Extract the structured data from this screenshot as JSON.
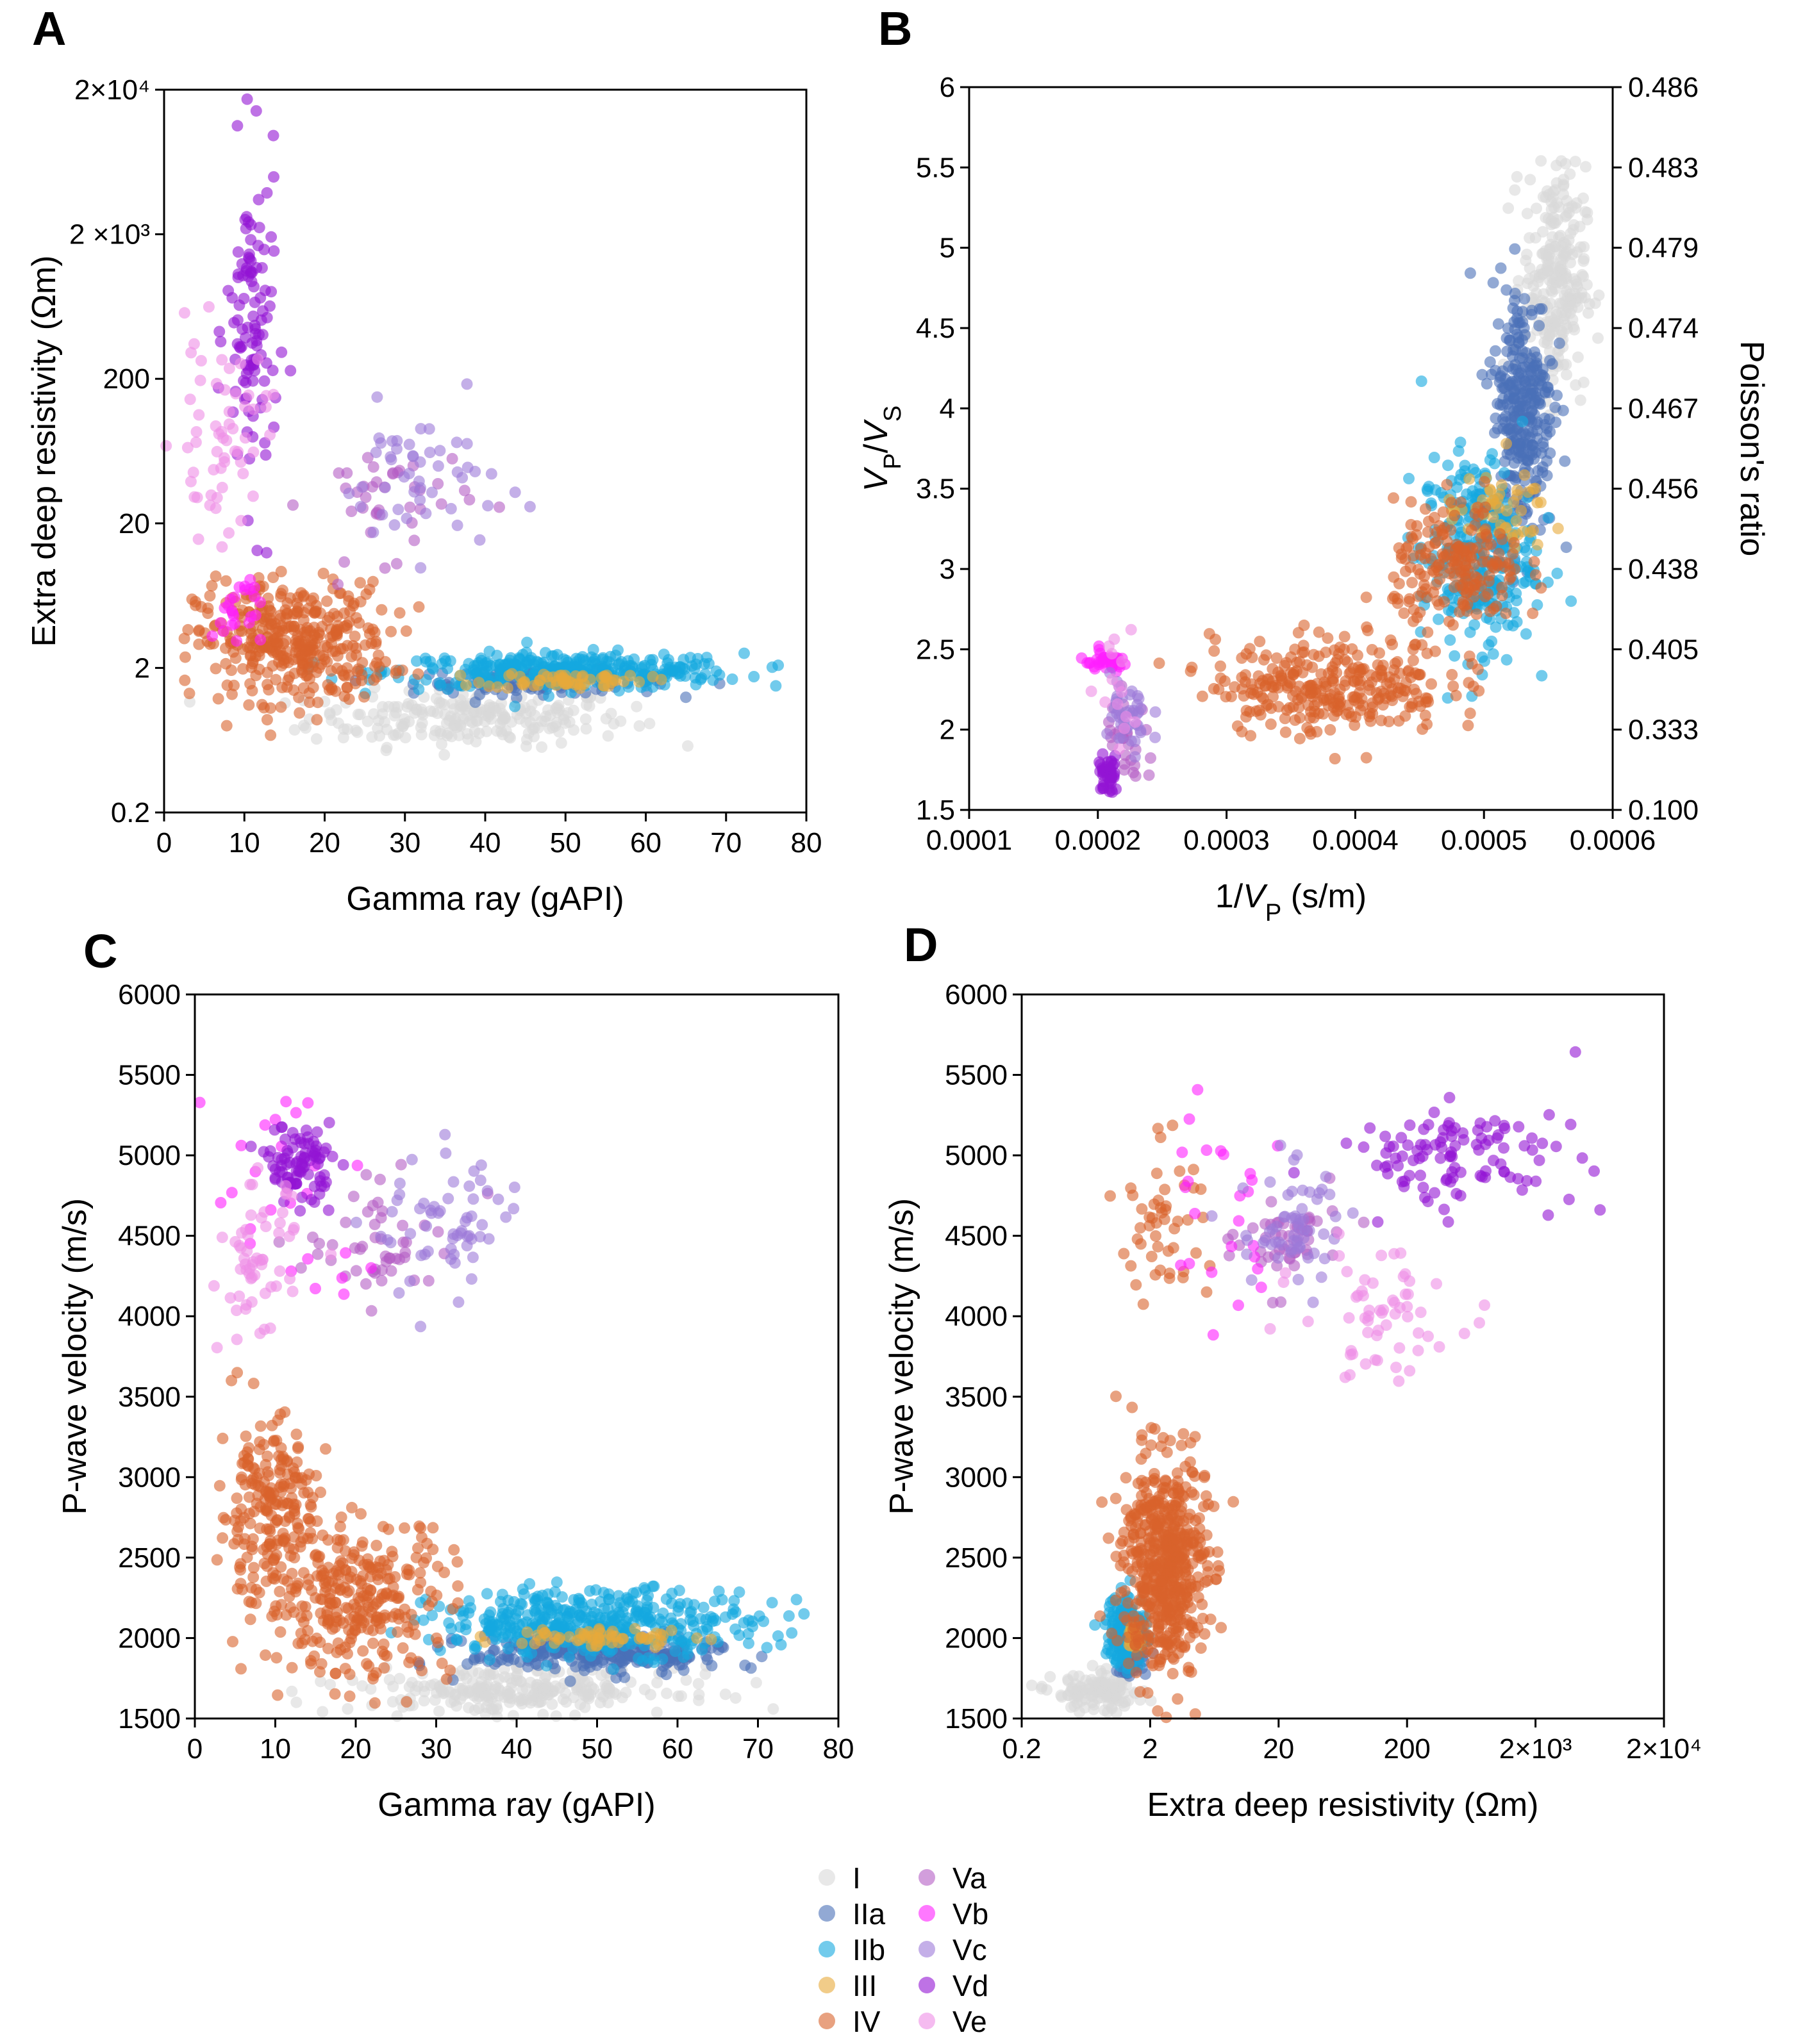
{
  "chart_data": [
    {
      "panel": "A",
      "type": "scatter",
      "xlabel": "Gamma ray (gAPI)",
      "ylabel": "Extra deep resistivity (Ωm)",
      "xlim": [
        0,
        80
      ],
      "ylim": [
        0.2,
        20000
      ],
      "yscale": "log",
      "xticks": [
        0,
        10,
        20,
        30,
        40,
        50,
        60,
        70,
        80
      ],
      "xticklabels": [
        "0",
        "10",
        "20",
        "30",
        "40",
        "50",
        "60",
        "70",
        "80"
      ],
      "yticks": [
        0.2,
        2,
        20,
        200,
        2000,
        20000
      ],
      "yticklabels": [
        "0.2",
        "2",
        "20",
        "200",
        "2 ×10³",
        "2×10⁴"
      ],
      "grid": false,
      "series": [
        {
          "name": "I",
          "clouds": [
            {
              "x": [
                38,
                10
              ],
              "y": [
                0.9,
                1.25
              ],
              "n": 220
            }
          ]
        },
        {
          "name": "IIa",
          "clouds": [
            {
              "x": [
                47,
                8
              ],
              "y": [
                1.6,
                1.1
              ],
              "n": 120
            }
          ]
        },
        {
          "name": "IIb",
          "clouds": [
            {
              "x": [
                50,
                11
              ],
              "y": [
                1.9,
                1.15
              ],
              "n": 350
            }
          ]
        },
        {
          "name": "III",
          "clouds": [
            {
              "x": [
                50,
                5
              ],
              "y": [
                1.65,
                1.07
              ],
              "n": 60
            }
          ]
        },
        {
          "name": "IV",
          "clouds": [
            {
              "x": [
                16,
                6
              ],
              "y": [
                3,
                1.6
              ],
              "n": 380
            }
          ]
        },
        {
          "name": "Va",
          "clouds": [
            {
              "x": [
                28,
                5
              ],
              "y": [
                30,
                1.6
              ],
              "n": 40
            }
          ]
        },
        {
          "name": "Vb",
          "clouds": [
            {
              "x": [
                9,
                1.5
              ],
              "y": [
                5,
                1.4
              ],
              "n": 25
            }
          ]
        },
        {
          "name": "Vc",
          "clouds": [
            {
              "x": [
                32,
                5
              ],
              "y": [
                40,
                1.8
              ],
              "n": 50
            }
          ]
        },
        {
          "name": "Vd",
          "clouds": [
            {
              "x": [
                11,
                1.6
              ],
              "y": [
                400,
                4
              ],
              "n": 110
            }
          ]
        },
        {
          "name": "Ve",
          "clouds": [
            {
              "x": [
                7,
                3
              ],
              "y": [
                80,
                2.2
              ],
              "n": 60
            }
          ]
        }
      ]
    },
    {
      "panel": "B",
      "type": "scatter",
      "xlabel_parts": [
        "1/",
        "V",
        "P",
        " (s/m)"
      ],
      "ylabel_parts": [
        "V",
        "P",
        "/",
        "V",
        "S"
      ],
      "y2label": "Poisson's ratio",
      "xlim": [
        0.0001,
        0.0006
      ],
      "ylim": [
        1.5,
        6
      ],
      "xticks": [
        0.0001,
        0.0002,
        0.0003,
        0.0004,
        0.0005,
        0.0006
      ],
      "xticklabels": [
        "0.0001",
        "0.0002",
        "0.0003",
        "0.0004",
        "0.0005",
        "0.0006"
      ],
      "yticks": [
        1.5,
        2,
        2.5,
        3,
        3.5,
        4,
        4.5,
        5,
        5.5,
        6
      ],
      "yticklabels": [
        "1.5",
        "2",
        "2.5",
        "3",
        "3.5",
        "4",
        "4.5",
        "5",
        "5.5",
        "6"
      ],
      "y2ticklabels": [
        "0.100",
        "0.333",
        "0.405",
        "0.438",
        "0.456",
        "0.467",
        "0.474",
        "0.479",
        "0.483",
        "0.486"
      ],
      "grid": false,
      "series": [
        {
          "name": "I",
          "clouds": [
            {
              "x": [
                0.000555,
                1.2e-05
              ],
              "y": [
                4.8,
                0.35
              ],
              "n": 260
            }
          ]
        },
        {
          "name": "IIa",
          "clouds": [
            {
              "x": [
                0.00053,
                1.2e-05
              ],
              "y": [
                4.0,
                0.4
              ],
              "n": 300
            }
          ]
        },
        {
          "name": "IIb",
          "clouds": [
            {
              "x": [
                0.000495,
                2.2e-05
              ],
              "y": [
                3.1,
                0.3
              ],
              "n": 300
            }
          ]
        },
        {
          "name": "III",
          "clouds": [
            {
              "x": [
                0.00051,
                2e-05
              ],
              "y": [
                3.35,
                0.12
              ],
              "n": 50
            }
          ]
        },
        {
          "name": "IV",
          "clouds": [
            {
              "x": [
                0.00038,
                4.5e-05
              ],
              "y": [
                2.28,
                0.15
              ],
              "n": 300
            },
            {
              "x": [
                0.00048,
                2.5e-05
              ],
              "y": [
                3.0,
                0.2
              ],
              "n": 200
            }
          ]
        },
        {
          "name": "Va",
          "clouds": [
            {
              "x": [
                0.000225,
                1e-05
              ],
              "y": [
                1.9,
                0.15
              ],
              "n": 30
            }
          ]
        },
        {
          "name": "Vb",
          "clouds": [
            {
              "x": [
                0.000205,
                1e-05
              ],
              "y": [
                2.42,
                0.03
              ],
              "n": 35
            }
          ]
        },
        {
          "name": "Vc",
          "clouds": [
            {
              "x": [
                0.000222,
                1e-05
              ],
              "y": [
                2.05,
                0.15
              ],
              "n": 40
            }
          ]
        },
        {
          "name": "Vd",
          "clouds": [
            {
              "x": [
                0.000208,
                4e-06
              ],
              "y": [
                1.72,
                0.06
              ],
              "n": 40
            }
          ]
        },
        {
          "name": "Ve",
          "clouds": [
            {
              "x": [
                0.000215,
                8e-06
              ],
              "y": [
                2.3,
                0.2
              ],
              "n": 15
            }
          ]
        }
      ]
    },
    {
      "panel": "C",
      "type": "scatter",
      "xlabel": "Gamma ray (gAPI)",
      "ylabel": "P-wave velocity (m/s)",
      "xlim": [
        0,
        80
      ],
      "ylim": [
        1500,
        6000
      ],
      "xticks": [
        0,
        10,
        20,
        30,
        40,
        50,
        60,
        70,
        80
      ],
      "xticklabels": [
        "0",
        "10",
        "20",
        "30",
        "40",
        "50",
        "60",
        "70",
        "80"
      ],
      "yticks": [
        1500,
        2000,
        2500,
        3000,
        3500,
        4000,
        4500,
        5000,
        5500,
        6000
      ],
      "yticklabels": [
        "1500",
        "2000",
        "2500",
        "3000",
        "3500",
        "4000",
        "4500",
        "5000",
        "5500",
        "6000"
      ],
      "grid": false,
      "series": [
        {
          "name": "I",
          "clouds": [
            {
              "x": [
                40,
                10
              ],
              "y": [
                1680,
                70
              ],
              "n": 260
            }
          ]
        },
        {
          "name": "IIa",
          "clouds": [
            {
              "x": [
                50,
                8
              ],
              "y": [
                1900,
                60
              ],
              "n": 250
            }
          ]
        },
        {
          "name": "IIb",
          "clouds": [
            {
              "x": [
                50,
                10
              ],
              "y": [
                2100,
                100
              ],
              "n": 400
            }
          ]
        },
        {
          "name": "III",
          "clouds": [
            {
              "x": [
                50,
                6
              ],
              "y": [
                2000,
                30
              ],
              "n": 60
            }
          ]
        },
        {
          "name": "IV",
          "clouds": [
            {
              "x": [
                9,
                3
              ],
              "y": [
                2800,
                280
              ],
              "n": 200
            },
            {
              "x": [
                20,
                6
              ],
              "y": [
                2250,
                250
              ],
              "n": 300
            }
          ]
        },
        {
          "name": "Va",
          "clouds": [
            {
              "x": [
                24,
                5
              ],
              "y": [
                4450,
                180
              ],
              "n": 50
            }
          ]
        },
        {
          "name": "Vb",
          "clouds": [
            {
              "x": [
                11,
                5
              ],
              "y": [
                4700,
                400
              ],
              "n": 25
            }
          ]
        },
        {
          "name": "Vc",
          "clouds": [
            {
              "x": [
                32,
                5
              ],
              "y": [
                4550,
                220
              ],
              "n": 60
            }
          ]
        },
        {
          "name": "Vd",
          "clouds": [
            {
              "x": [
                13,
                2
              ],
              "y": [
                4950,
                120
              ],
              "n": 90
            }
          ]
        },
        {
          "name": "Ve",
          "clouds": [
            {
              "x": [
                8,
                2.5
              ],
              "y": [
                4300,
                250
              ],
              "n": 60
            }
          ]
        }
      ]
    },
    {
      "panel": "D",
      "type": "scatter",
      "xlabel": "Extra deep resistivity (Ωm)",
      "ylabel": "P-wave velocity (m/s)",
      "xlim": [
        0.2,
        20000
      ],
      "xscale": "log",
      "ylim": [
        1500,
        6000
      ],
      "xticks": [
        0.2,
        2,
        20,
        200,
        2000,
        20000
      ],
      "xticklabels": [
        "0.2",
        "2",
        "20",
        "200",
        "2×10³",
        "2×10⁴"
      ],
      "yticks": [
        1500,
        2000,
        2500,
        3000,
        3500,
        4000,
        4500,
        5000,
        5500,
        6000
      ],
      "yticklabels": [
        "1500",
        "2000",
        "2500",
        "3000",
        "3500",
        "4000",
        "4500",
        "5000",
        "5500",
        "6000"
      ],
      "grid": false,
      "series": [
        {
          "name": "I",
          "clouds": [
            {
              "x": [
                0.8,
                1.5
              ],
              "y": [
                1660,
                60
              ],
              "n": 120
            }
          ]
        },
        {
          "name": "IIa",
          "clouds": [
            {
              "x": [
                1.4,
                1.12
              ],
              "y": [
                1900,
                60
              ],
              "n": 120
            }
          ]
        },
        {
          "name": "IIb",
          "clouds": [
            {
              "x": [
                1.3,
                1.2
              ],
              "y": [
                2050,
                120
              ],
              "n": 150
            }
          ]
        },
        {
          "name": "III",
          "clouds": [
            {
              "x": [
                1.5,
                1.1
              ],
              "y": [
                2000,
                40
              ],
              "n": 20
            }
          ]
        },
        {
          "name": "IV",
          "clouds": [
            {
              "x": [
                2.6,
                1.45
              ],
              "y": [
                2450,
                330
              ],
              "n": 550
            },
            {
              "x": [
                2.5,
                1.5
              ],
              "y": [
                4600,
                250
              ],
              "n": 50
            }
          ]
        },
        {
          "name": "Va",
          "clouds": [
            {
              "x": [
                25,
                1.6
              ],
              "y": [
                4450,
                150
              ],
              "n": 50
            }
          ]
        },
        {
          "name": "Vb",
          "clouds": [
            {
              "x": [
                6,
                1.8
              ],
              "y": [
                4700,
                400
              ],
              "n": 25
            }
          ]
        },
        {
          "name": "Vc",
          "clouds": [
            {
              "x": [
                25,
                1.6
              ],
              "y": [
                4550,
                200
              ],
              "n": 60
            }
          ]
        },
        {
          "name": "Vd",
          "clouds": [
            {
              "x": [
                500,
                3
              ],
              "y": [
                5000,
                150
              ],
              "n": 110
            }
          ]
        },
        {
          "name": "Ve",
          "clouds": [
            {
              "x": [
                120,
                2
              ],
              "y": [
                4000,
                200
              ],
              "n": 60
            }
          ]
        }
      ]
    }
  ],
  "legend": {
    "placement": "bottom-center",
    "items": [
      {
        "label": "I",
        "color": "#d9d9d9"
      },
      {
        "label": "IIa",
        "color": "#4a70b8"
      },
      {
        "label": "IIb",
        "color": "#14a8e0"
      },
      {
        "label": "III",
        "color": "#e8aa3a"
      },
      {
        "label": "IV",
        "color": "#d8632c"
      },
      {
        "label": "Va",
        "color": "#b45ec4"
      },
      {
        "label": "Vb",
        "color": "#ff1eff"
      },
      {
        "label": "Vc",
        "color": "#9c7ad8"
      },
      {
        "label": "Vd",
        "color": "#9214d4"
      },
      {
        "label": "Ve",
        "color": "#ee8ee6"
      }
    ]
  }
}
